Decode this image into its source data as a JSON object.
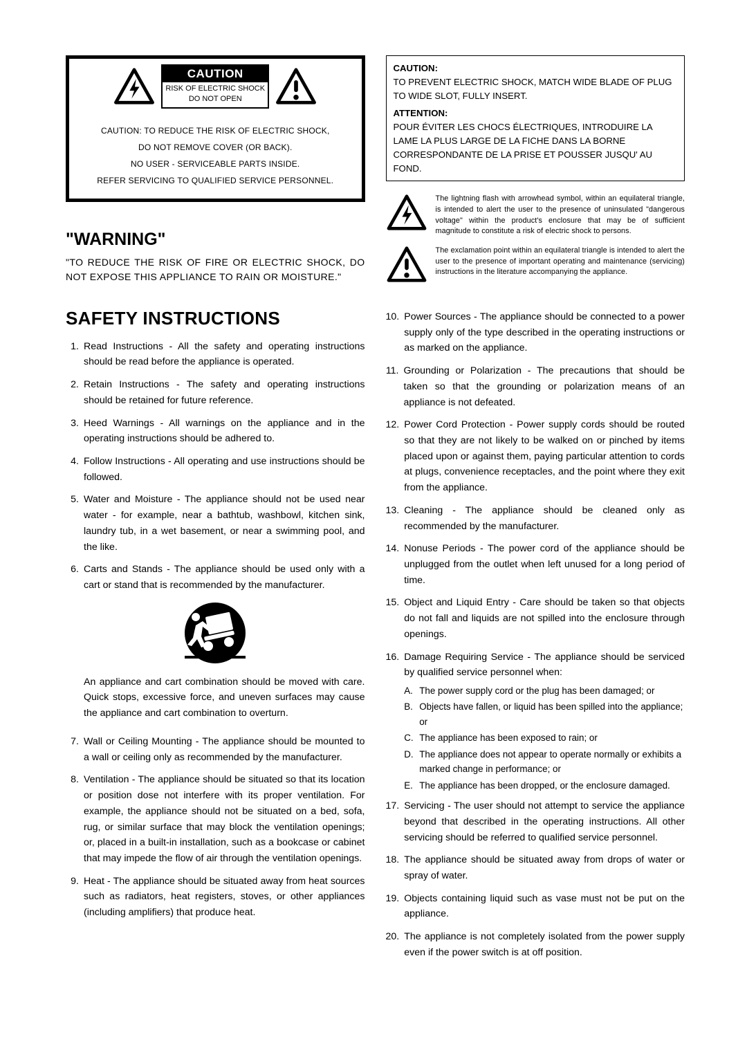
{
  "caution_box": {
    "header": "CAUTION",
    "sub1": "RISK OF ELECTRIC SHOCK",
    "sub2": "DO NOT OPEN",
    "line1": "CAUTION: TO REDUCE THE RISK OF ELECTRIC SHOCK,",
    "line2": "DO NOT REMOVE COVER (OR BACK).",
    "line3": "NO USER - SERVICEABLE PARTS INSIDE.",
    "line4": "REFER SERVICING TO QUALIFIED SERVICE PERSONNEL."
  },
  "warning": {
    "title": "\"WARNING\"",
    "body": "\"TO REDUCE THE RISK OF FIRE OR ELECTRIC SHOCK, DO NOT EXPOSE THIS APPLIANCE TO RAIN OR MOISTURE.\""
  },
  "safety_title": "SAFETY INSTRUCTIONS",
  "left_items": [
    {
      "n": "1.",
      "t": "Read Instructions - All the safety and operating instructions should be read before the appliance is operated."
    },
    {
      "n": "2.",
      "t": "Retain Instructions - The safety and operating instructions should be retained for future reference."
    },
    {
      "n": "3.",
      "t": "Heed Warnings - All warnings on the appliance and in the operating instructions should be adhered to."
    },
    {
      "n": "4.",
      "t": "Follow Instructions - All operating and use instructions should be followed."
    },
    {
      "n": "5.",
      "t": "Water and Moisture - The appliance should not be used near water - for example, near a bathtub, washbowl, kitchen sink, laundry tub, in a wet basement, or near a swimming pool, and the like."
    },
    {
      "n": "6.",
      "t": "Carts and Stands - The appliance should be used only with a cart or stand that is recommended by the manufacturer."
    }
  ],
  "cart_caption": "An appliance and cart combination should be moved with care. Quick stops, excessive force, and uneven surfaces may cause the appliance and cart combination to overturn.",
  "left_items_2": [
    {
      "n": "7.",
      "t": "Wall or Ceiling Mounting - The appliance should be mounted to a wall or ceiling only as recommended by the manufacturer."
    },
    {
      "n": "8.",
      "t": "Ventilation - The appliance should be situated so that its location or position dose not interfere with its proper ventilation. For example, the appliance should not be situated on a bed, sofa, rug, or similar surface that may block the ventilation openings; or, placed in a built-in installation, such as a bookcase or cabinet that may impede the flow of air through the ventilation openings."
    },
    {
      "n": "9.",
      "t": "Heat - The appliance should be situated away from heat sources such as radiators, heat registers, stoves, or other appliances (including amplifiers) that produce heat."
    }
  ],
  "bi_box": {
    "caution_hd": "CAUTION:",
    "caution_body": "TO PREVENT ELECTRIC SHOCK, MATCH WIDE BLADE OF PLUG TO WIDE SLOT, FULLY INSERT.",
    "attention_hd": "ATTENTION:",
    "attention_body": "POUR ÉVITER LES CHOCS ÉLECTRIQUES, INTRODUIRE LA LAME LA PLUS LARGE DE LA FICHE DANS LA BORNE CORRESPONDANTE DE LA PRISE ET POUSSER JUSQU' AU FOND."
  },
  "symbol1": "The lightning flash with arrowhead symbol, within an equilateral triangle, is intended to alert the user to the presence of uninsulated \"dangerous voltage\" within the product's enclosure that may be of sufficient magnitude to constitute a risk of electric shock to persons.",
  "symbol2": "The exclamation point within an equilateral triangle is intended to alert the user to the presence of important operating and maintenance (servicing) instructions in the literature accompanying the appliance.",
  "right_items": [
    {
      "n": "10.",
      "t": "Power Sources - The appliance should be connected to a power supply only of the type described in the operating instructions or as marked on the appliance."
    },
    {
      "n": "11.",
      "t": "Grounding or Polarization - The precautions that should be taken so that the grounding or polarization means of an appliance is not defeated."
    },
    {
      "n": "12.",
      "t": "Power Cord Protection - Power supply cords should be routed so that they are not likely to be walked on or pinched by items placed upon or against them, paying particular attention to cords at plugs, convenience receptacles, and the point where they exit from the appliance."
    },
    {
      "n": "13.",
      "t": "Cleaning - The appliance should be cleaned only as recommended by the manufacturer."
    },
    {
      "n": "14.",
      "t": "Nonuse Periods - The power cord of the appliance should be unplugged from the outlet when left unused for a long period of time."
    },
    {
      "n": "15.",
      "t": "Object and Liquid Entry - Care should be taken so that objects do not fall and liquids are not spilled into the enclosure through openings."
    },
    {
      "n": "16.",
      "t": "Damage Requiring Service - The appliance should be serviced by qualified service personnel when:",
      "sub": [
        {
          "l": "A.",
          "t": "The power supply cord or the plug has been damaged; or"
        },
        {
          "l": "B.",
          "t": "Objects have fallen, or liquid has been spilled into the appliance; or"
        },
        {
          "l": "C.",
          "t": "The appliance has been exposed to rain; or"
        },
        {
          "l": "D.",
          "t": "The appliance does not appear to operate normally or exhibits  a marked change in performance; or"
        },
        {
          "l": "E.",
          "t": "The appliance has been dropped, or the enclosure damaged."
        }
      ]
    },
    {
      "n": "17.",
      "t": "Servicing - The user should not attempt to service the appliance beyond that described in the operating instructions. All other servicing should be referred to qualified service personnel."
    },
    {
      "n": "18.",
      "t": "The appliance should be situated away from drops of water or spray of water."
    },
    {
      "n": "19.",
      "t": "Objects containing liquid such as vase must not be put on the appliance."
    },
    {
      "n": "20.",
      "t": "The appliance is not completely isolated from the power supply even if the power switch is at off position."
    }
  ]
}
